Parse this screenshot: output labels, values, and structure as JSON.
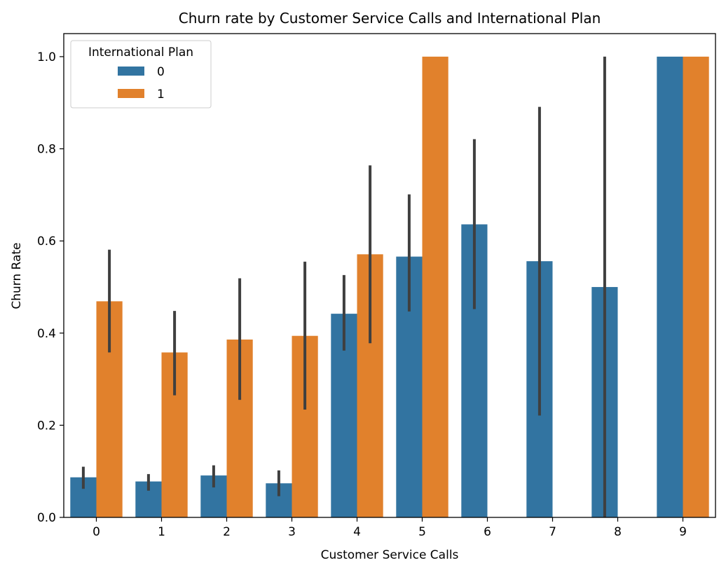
{
  "chart_data": {
    "type": "bar",
    "title": "Churn rate by Customer Service Calls and International Plan",
    "xlabel": "Customer Service Calls",
    "ylabel": "Churn Rate",
    "categories": [
      "0",
      "1",
      "2",
      "3",
      "4",
      "5",
      "6",
      "7",
      "8",
      "9"
    ],
    "ylim": [
      0,
      1.05
    ],
    "yticks": [
      0.0,
      0.2,
      0.4,
      0.6,
      0.8,
      1.0
    ],
    "ytick_labels": [
      "0.0",
      "0.2",
      "0.4",
      "0.6",
      "0.8",
      "1.0"
    ],
    "grid": false,
    "legend": {
      "title": "International Plan",
      "placement": "top-left"
    },
    "series": [
      {
        "name": "0",
        "color": "#3274a1",
        "values": [
          0.087,
          0.078,
          0.091,
          0.074,
          0.442,
          0.566,
          0.636,
          0.556,
          0.5,
          1.0
        ],
        "err_low": [
          0.062,
          0.058,
          0.065,
          0.046,
          0.362,
          0.447,
          0.452,
          0.221,
          0.0,
          1.0
        ],
        "err_high": [
          0.11,
          0.094,
          0.113,
          0.102,
          0.526,
          0.701,
          0.821,
          0.891,
          1.0,
          1.0
        ]
      },
      {
        "name": "1",
        "color": "#e1812c",
        "values": [
          0.469,
          0.358,
          0.386,
          0.394,
          0.571,
          1.0,
          null,
          null,
          null,
          1.0
        ],
        "err_low": [
          0.358,
          0.265,
          0.255,
          0.234,
          0.378,
          1.0,
          null,
          null,
          null,
          1.0
        ],
        "err_high": [
          0.581,
          0.448,
          0.519,
          0.555,
          0.764,
          1.0,
          null,
          null,
          null,
          1.0
        ]
      }
    ],
    "errorbar_color": "#3f3f3f"
  }
}
